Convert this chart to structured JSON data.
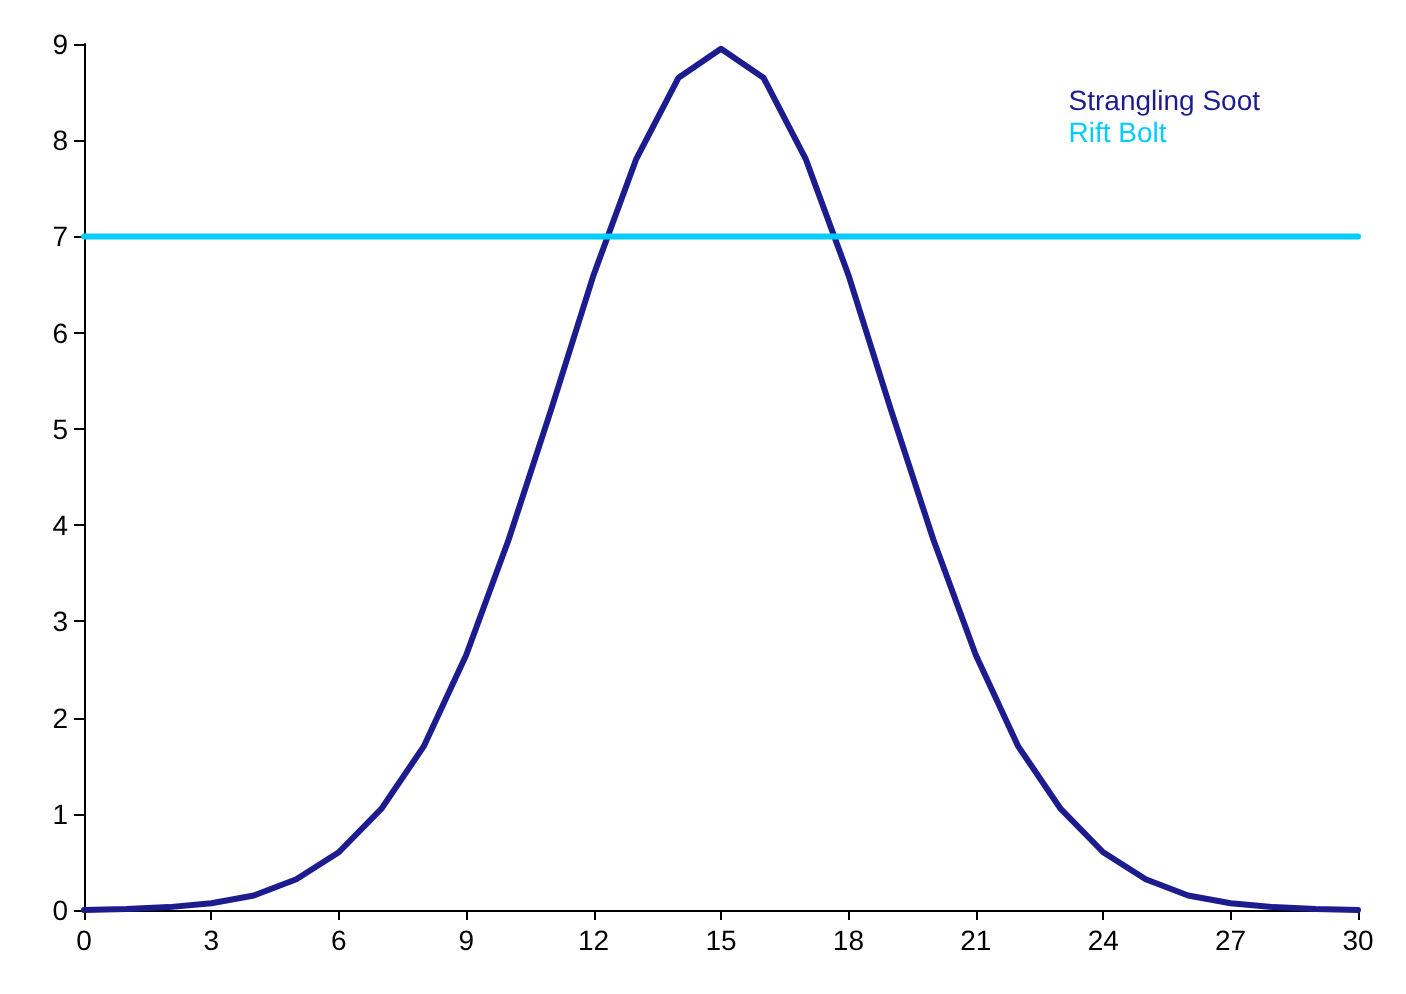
{
  "chart_data": {
    "type": "line",
    "legend": "top right",
    "grid": false,
    "marker": "none",
    "line_style": "solid",
    "xlim": [
      0,
      30
    ],
    "xticks": [
      0,
      3,
      6,
      9,
      12,
      15,
      18,
      21,
      24,
      27,
      30
    ],
    "ylim": [
      0,
      9
    ],
    "yticks": [
      0,
      1,
      2,
      3,
      4,
      5,
      6,
      7,
      8,
      9
    ],
    "series": [
      {
        "name": "Strangling Soot",
        "color": "#1c1c8f",
        "x": [
          0,
          1,
          2,
          3,
          4,
          5,
          6,
          7,
          8,
          9,
          10,
          11,
          12,
          13,
          14,
          15,
          16,
          17,
          18,
          19,
          20,
          21,
          22,
          23,
          24,
          25,
          26,
          27,
          28,
          29,
          30
        ],
        "values": [
          0,
          0.01,
          0.03,
          0.07,
          0.15,
          0.32,
          0.6,
          1.05,
          1.7,
          2.65,
          3.85,
          5.2,
          6.6,
          7.8,
          8.65,
          8.95,
          8.65,
          7.8,
          6.6,
          5.2,
          3.85,
          2.65,
          1.7,
          1.05,
          0.6,
          0.32,
          0.15,
          0.07,
          0.03,
          0.01,
          0
        ]
      },
      {
        "name": "Rift Bolt",
        "color": "#00ccff",
        "x": [
          0,
          30
        ],
        "values": [
          7,
          7
        ]
      }
    ]
  }
}
